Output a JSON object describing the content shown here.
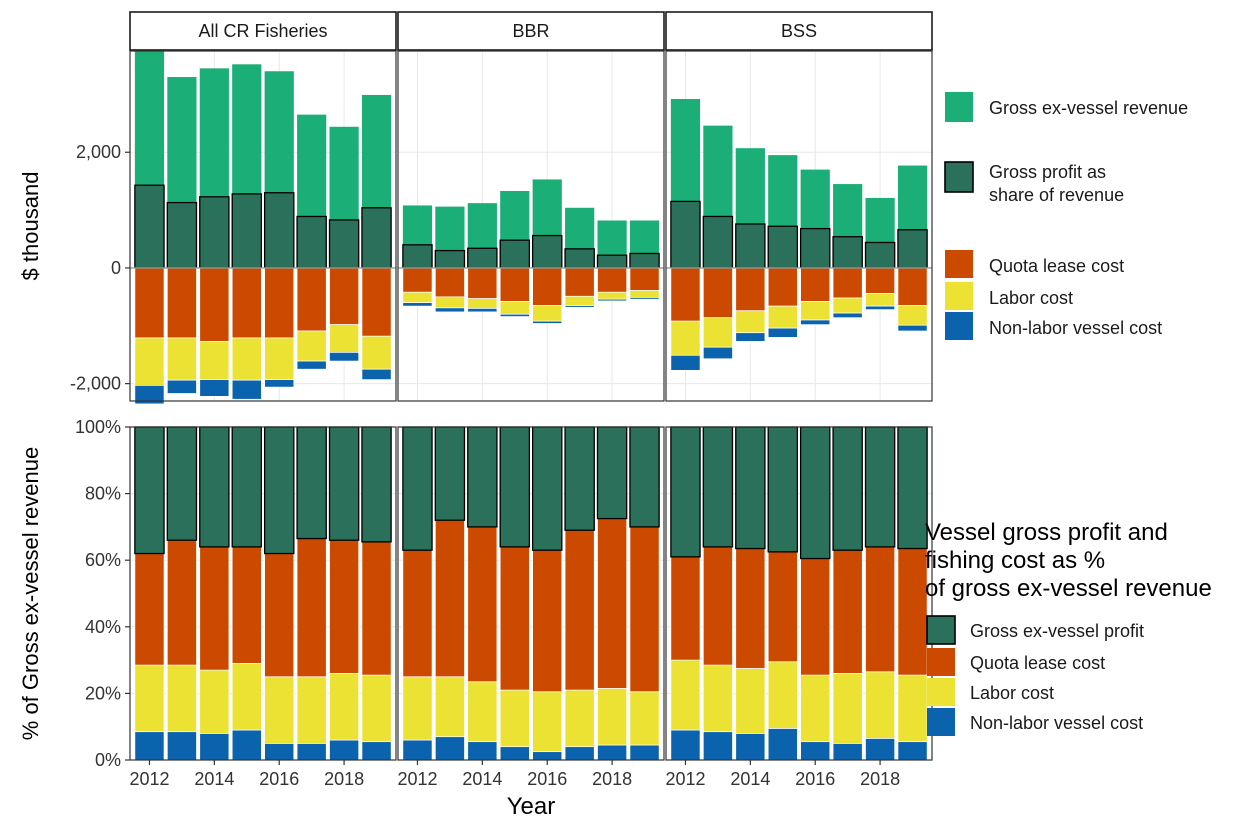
{
  "chart_data": {
    "type": "bar",
    "x": [
      2012,
      2013,
      2014,
      2015,
      2016,
      2017,
      2018,
      2019
    ],
    "xlabel": "Year",
    "x_ticks": [
      "2012",
      "2014",
      "2016",
      "2018"
    ],
    "facets": [
      "All CR Fisheries",
      "BBR",
      "BSS"
    ],
    "top": {
      "ylabel": "$ thousand",
      "ylim": [
        -2300,
        3750
      ],
      "y_ticks": [
        {
          "value": -2000,
          "label": "-2,000"
        },
        {
          "value": 0,
          "label": "0"
        },
        {
          "value": 2000,
          "label": "2,000"
        }
      ],
      "legend": [
        {
          "key": "revenue",
          "label": "Gross ex-vessel revenue",
          "lines": [
            "Gross ex-vessel revenue"
          ]
        },
        {
          "key": "profit",
          "label": "Gross profit as share of revenue",
          "lines": [
            "Gross profit as",
            "share of revenue"
          ]
        },
        {
          "key": "quota",
          "label": "Quota lease cost",
          "lines": [
            "Quota lease cost"
          ]
        },
        {
          "key": "labor",
          "label": "Labor cost",
          "lines": [
            "Labor cost"
          ]
        },
        {
          "key": "nonlabor",
          "label": "Non-labor vessel cost",
          "lines": [
            "Non-labor vessel cost"
          ]
        }
      ],
      "series": [
        {
          "facet": "All CR Fisheries",
          "revenue": [
            3750,
            3300,
            3450,
            3520,
            3400,
            2650,
            2440,
            2990
          ],
          "profit": [
            1430,
            1130,
            1230,
            1280,
            1300,
            890,
            830,
            1040
          ],
          "quota": [
            1210,
            1210,
            1270,
            1210,
            1210,
            1090,
            980,
            1180
          ],
          "labor": [
            820,
            730,
            660,
            730,
            720,
            520,
            480,
            570
          ],
          "nonlabor": [
            320,
            230,
            290,
            330,
            130,
            140,
            150,
            180
          ]
        },
        {
          "facet": "BBR",
          "revenue": [
            1080,
            1060,
            1120,
            1330,
            1530,
            1040,
            820,
            820
          ],
          "profit": [
            400,
            300,
            340,
            480,
            560,
            330,
            220,
            250
          ],
          "quota": [
            420,
            500,
            530,
            580,
            650,
            490,
            420,
            390
          ],
          "labor": [
            180,
            190,
            170,
            220,
            270,
            160,
            120,
            120
          ],
          "nonlabor": [
            60,
            70,
            60,
            40,
            40,
            30,
            30,
            30
          ]
        },
        {
          "facet": "BSS",
          "revenue": [
            2920,
            2460,
            2070,
            1950,
            1700,
            1450,
            1210,
            1770
          ],
          "profit": [
            1150,
            890,
            760,
            720,
            680,
            540,
            440,
            660
          ],
          "quota": [
            920,
            860,
            740,
            660,
            580,
            520,
            440,
            650
          ],
          "labor": [
            590,
            510,
            380,
            380,
            320,
            260,
            220,
            340
          ],
          "nonlabor": [
            260,
            200,
            150,
            160,
            80,
            80,
            60,
            100
          ]
        }
      ]
    },
    "bottom": {
      "ylabel": "% of Gross ex-vessel revenue",
      "ylim": [
        0,
        100
      ],
      "y_ticks": [
        {
          "value": 0,
          "label": "0%"
        },
        {
          "value": 20,
          "label": "20%"
        },
        {
          "value": 40,
          "label": "40%"
        },
        {
          "value": 60,
          "label": "60%"
        },
        {
          "value": 80,
          "label": "80%"
        },
        {
          "value": 100,
          "label": "100%"
        }
      ],
      "legend_title_lines": [
        "Vessel gross profit and",
        "fishing cost as %",
        "of gross ex-vessel revenue"
      ],
      "legend_title": "Vessel gross profit and fishing cost as % of gross ex-vessel revenue",
      "legend": [
        {
          "key": "profit",
          "label": "Gross ex-vessel profit"
        },
        {
          "key": "quota",
          "label": "Quota lease cost"
        },
        {
          "key": "labor",
          "label": "Labor cost"
        },
        {
          "key": "nonlabor",
          "label": "Non-labor vessel cost"
        }
      ],
      "series": [
        {
          "facet": "All CR Fisheries",
          "nonlabor": [
            8.5,
            8.5,
            8,
            9,
            5,
            5,
            6,
            5.5
          ],
          "labor": [
            20,
            20,
            19,
            20,
            20,
            20,
            20,
            20
          ],
          "quota": [
            33.5,
            37.5,
            37,
            35,
            37,
            41.5,
            40,
            40
          ],
          "profit": [
            38,
            34,
            36,
            36,
            38,
            33.5,
            34,
            34.5
          ]
        },
        {
          "facet": "BBR",
          "nonlabor": [
            6,
            7,
            5.5,
            4,
            2.5,
            4,
            4.5,
            4.5
          ],
          "labor": [
            19,
            18,
            18,
            17,
            18,
            17,
            17,
            16
          ],
          "quota": [
            38,
            47,
            46.5,
            43,
            42.5,
            48,
            51,
            49.5
          ],
          "profit": [
            37,
            28,
            30,
            36,
            37,
            31,
            27.5,
            30
          ]
        },
        {
          "facet": "BSS",
          "nonlabor": [
            9,
            8.5,
            8,
            9.5,
            5.5,
            5,
            6.5,
            5.5
          ],
          "labor": [
            21,
            20,
            19.5,
            20,
            20,
            21,
            20,
            20
          ],
          "quota": [
            31,
            35.5,
            36,
            33,
            35,
            37,
            37.5,
            38
          ],
          "profit": [
            39,
            36,
            36.5,
            37.5,
            39.5,
            37,
            36,
            36.5
          ]
        }
      ]
    },
    "colors": {
      "revenue": "#1bae77",
      "profit": "#2a705a",
      "quota": "#cc4a00",
      "labor": "#ece234",
      "nonlabor": "#0b63ad",
      "panel_border": "#333333",
      "text": "#333333",
      "grid": "#e8e8e8",
      "zero_line": "#999999"
    }
  }
}
